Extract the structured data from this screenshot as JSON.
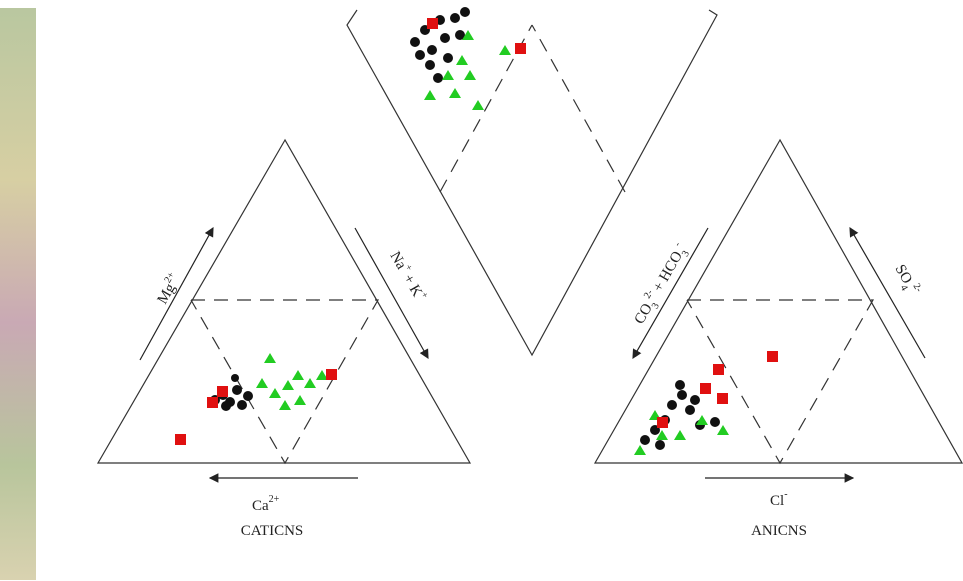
{
  "labels": {
    "mg": {
      "base": "Mg",
      "sup": "2+"
    },
    "nak": {
      "base1": "Na",
      "sup1": "+",
      "mid": "+ K",
      "sup2": "+"
    },
    "ca": {
      "base": "Ca",
      "sup": "2+"
    },
    "cations": "CATICNS",
    "co3": {
      "base1": "CO",
      "sub1": "3",
      "sup1": "2-",
      "mid": "+ HCO",
      "sub2": "3",
      "sup2": "-"
    },
    "so4": {
      "base": "SO",
      "sub": "4",
      "sup": "2-"
    },
    "cl": {
      "base": "Cl",
      "sup": "-"
    },
    "anions": "ANICNS"
  }
}
